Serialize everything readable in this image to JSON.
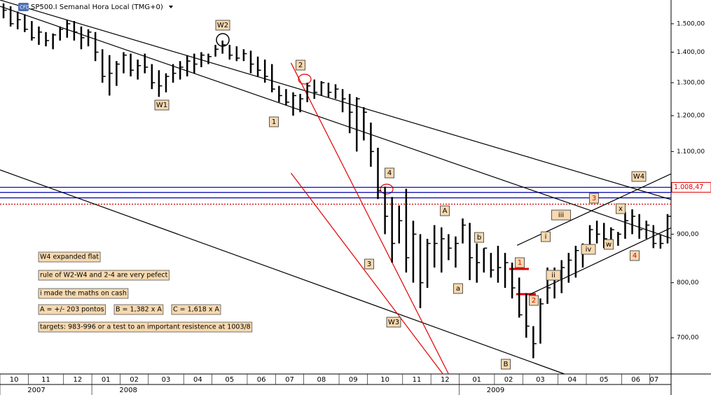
{
  "chart_data": {
    "type": "ohlc",
    "title": "SP500.I Semanal Hora Local (TMG+0)",
    "badge": "CFD",
    "log_scale": true,
    "bar_color": "#000000",
    "ylim": [
      641,
      1589
    ],
    "yticks": [
      {
        "value": 1500,
        "label": "1.500,00"
      },
      {
        "value": 1400,
        "label": "1.400,00"
      },
      {
        "value": 1300,
        "label": "1.300,00"
      },
      {
        "value": 1200,
        "label": "1.200,00"
      },
      {
        "value": 1100,
        "label": "1.100,00"
      },
      {
        "value": 900,
        "label": "900,00"
      },
      {
        "value": 800,
        "label": "800,00"
      },
      {
        "value": 700,
        "label": "700,00"
      }
    ],
    "xlim": [
      -0.5,
      94.5
    ],
    "xticks": [
      {
        "value": 0,
        "label": "10"
      },
      {
        "value": 4,
        "label": "11"
      },
      {
        "value": 9,
        "label": "12"
      },
      {
        "value": 13,
        "label": "01"
      },
      {
        "value": 17,
        "label": "02"
      },
      {
        "value": 21,
        "label": "03"
      },
      {
        "value": 26,
        "label": "04"
      },
      {
        "value": 30,
        "label": "05"
      },
      {
        "value": 35,
        "label": "06"
      },
      {
        "value": 39,
        "label": "07"
      },
      {
        "value": 43,
        "label": "08"
      },
      {
        "value": 48,
        "label": "09"
      },
      {
        "value": 52,
        "label": "10"
      },
      {
        "value": 57,
        "label": "11"
      },
      {
        "value": 61,
        "label": "12"
      },
      {
        "value": 65,
        "label": "01"
      },
      {
        "value": 70,
        "label": "02"
      },
      {
        "value": 74,
        "label": "03"
      },
      {
        "value": 79,
        "label": "04"
      },
      {
        "value": 83,
        "label": "05"
      },
      {
        "value": 88,
        "label": "06"
      },
      {
        "value": 92,
        "label": "07"
      }
    ],
    "years": [
      {
        "value": 0,
        "label": "2007"
      },
      {
        "value": 13,
        "label": "2008"
      },
      {
        "value": 65,
        "label": "2009"
      }
    ],
    "high": [
      1576,
      1565,
      1545,
      1535,
      1510,
      1490,
      1470,
      1465,
      1490,
      1515,
      1510,
      1490,
      1480,
      1470,
      1410,
      1390,
      1370,
      1400,
      1395,
      1375,
      1395,
      1360,
      1340,
      1330,
      1360,
      1370,
      1390,
      1395,
      1400,
      1395,
      1425,
      1440,
      1425,
      1420,
      1410,
      1405,
      1385,
      1375,
      1360,
      1290,
      1280,
      1270,
      1265,
      1300,
      1310,
      1305,
      1300,
      1295,
      1280,
      1265,
      1255,
      1225,
      1180,
      1110,
      1010,
      985,
      965,
      1005,
      930,
      900,
      890,
      920,
      915,
      900,
      895,
      935,
      925,
      880,
      870,
      860,
      875,
      860,
      840,
      810,
      780,
      720,
      770,
      830,
      830,
      845,
      860,
      875,
      880,
      920,
      930,
      925,
      915,
      905,
      950,
      956,
      945,
      930,
      920,
      900,
      945
    ],
    "low": [
      1520,
      1490,
      1480,
      1470,
      1440,
      1425,
      1420,
      1410,
      1440,
      1450,
      1440,
      1410,
      1420,
      1370,
      1300,
      1260,
      1290,
      1330,
      1320,
      1310,
      1330,
      1280,
      1256,
      1270,
      1300,
      1310,
      1320,
      1330,
      1350,
      1360,
      1385,
      1395,
      1375,
      1370,
      1370,
      1330,
      1320,
      1300,
      1270,
      1240,
      1230,
      1200,
      1210,
      1240,
      1250,
      1260,
      1255,
      1250,
      1210,
      1150,
      1100,
      1130,
      1060,
      980,
      900,
      840,
      880,
      820,
      800,
      752,
      790,
      830,
      820,
      845,
      830,
      880,
      805,
      800,
      820,
      810,
      800,
      790,
      770,
      735,
      700,
      666,
      690,
      760,
      770,
      780,
      800,
      810,
      830,
      870,
      880,
      870,
      880,
      875,
      890,
      900,
      890,
      890,
      870,
      869,
      880
    ],
    "close": [
      1550,
      1500,
      1515,
      1480,
      1450,
      1470,
      1440,
      1460,
      1480,
      1500,
      1470,
      1450,
      1470,
      1400,
      1320,
      1330,
      1360,
      1390,
      1340,
      1355,
      1350,
      1300,
      1290,
      1320,
      1330,
      1350,
      1370,
      1360,
      1390,
      1385,
      1410,
      1425,
      1390,
      1380,
      1395,
      1360,
      1340,
      1320,
      1280,
      1260,
      1240,
      1260,
      1250,
      1290,
      1270,
      1300,
      1270,
      1280,
      1250,
      1210,
      1250,
      1210,
      1100,
      1000,
      940,
      880,
      930,
      850,
      900,
      800,
      880,
      880,
      890,
      870,
      880,
      920,
      850,
      840,
      870,
      825,
      830,
      840,
      790,
      740,
      720,
      690,
      760,
      790,
      815,
      830,
      845,
      865,
      870,
      910,
      900,
      890,
      910,
      900,
      930,
      940,
      910,
      920,
      880,
      880,
      940
    ],
    "price_lines": [
      {
        "value": 1008.47,
        "label": "1.008,47",
        "color": "#0000aa"
      },
      {
        "value": 996,
        "color": "#0000aa"
      },
      {
        "value": 983,
        "color": "#0000aa"
      },
      {
        "value": 968,
        "color": "#d00000",
        "dashed": true
      }
    ],
    "trendlines": [
      {
        "color": "#000000",
        "points": [
          [
            -0.5,
            1589
          ],
          [
            94.5,
            979
          ]
        ]
      },
      {
        "color": "#000000",
        "points": [
          [
            -0.5,
            1565
          ],
          [
            94.5,
            891
          ]
        ]
      },
      {
        "color": "#000000",
        "points": [
          [
            -0.5,
            1052
          ],
          [
            79.4,
            641
          ]
        ]
      },
      {
        "color": "#000000",
        "points": [
          [
            72.7,
            876
          ],
          [
            94.5,
            1042
          ]
        ]
      },
      {
        "color": "#000000",
        "points": [
          [
            74.4,
            777
          ],
          [
            94.5,
            914
          ]
        ]
      },
      {
        "color": "#e00000",
        "points": [
          [
            40.7,
            1364
          ],
          [
            63,
            641
          ]
        ]
      },
      {
        "color": "#e00000",
        "points": [
          [
            40.7,
            1044
          ],
          [
            62.2,
            641
          ]
        ]
      }
    ],
    "wave_labels": [
      "W1",
      "W2",
      "1",
      "2",
      "W3",
      "3",
      "4",
      "A",
      "a",
      "b",
      "B",
      "W4",
      "1",
      "2",
      "i",
      "ii",
      "iii",
      "iv",
      "3",
      "w",
      "x",
      "4"
    ],
    "notes": [
      "W4 expanded flat",
      "rule of W2-W4 and 2-4 are very pefect",
      "i made the maths on cash",
      "A = +/- 203 pontos",
      "B = 1,382 x A",
      "C = 1,618 x A",
      "targets: 983-996 or a test to an important resistence at 1003/8"
    ]
  }
}
